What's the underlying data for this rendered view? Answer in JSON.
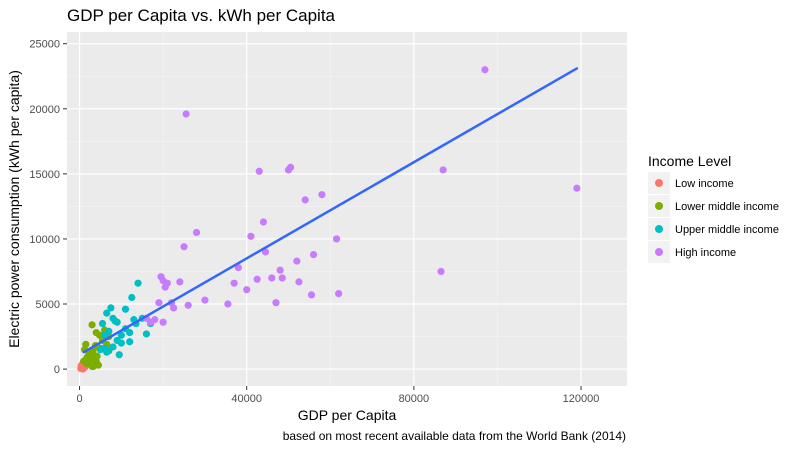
{
  "chart_data": {
    "type": "scatter",
    "title": "GDP per Capita vs. kWh per Capita",
    "xlabel": "GDP per Capita",
    "ylabel": "Electric power consumption (kWh per capita)",
    "caption": "based on most recent available data from the World Bank (2014)",
    "xlim": [
      -3000,
      131000
    ],
    "ylim": [
      -1300,
      25900
    ],
    "x_ticks": [
      0,
      40000,
      80000,
      120000
    ],
    "x_tick_labels": [
      "0",
      "40000",
      "80000",
      "120000"
    ],
    "y_ticks": [
      0,
      5000,
      10000,
      15000,
      20000,
      25000
    ],
    "y_tick_labels": [
      "0",
      "5000",
      "10000",
      "15000",
      "20000",
      "25000"
    ],
    "grid": true,
    "legend_position": "right",
    "legend_title": "Income Level",
    "series": [
      {
        "name": "Low income",
        "color": "#f8766d",
        "points": [
          [
            300,
            50
          ],
          [
            500,
            100
          ],
          [
            600,
            300
          ],
          [
            700,
            150
          ],
          [
            800,
            450
          ],
          [
            900,
            250
          ],
          [
            1000,
            200
          ],
          [
            1100,
            380
          ],
          [
            1200,
            500
          ],
          [
            1300,
            150
          ],
          [
            1500,
            320
          ],
          [
            1700,
            420
          ],
          [
            400,
            250
          ],
          [
            800,
            0
          ]
        ]
      },
      {
        "name": "Lower middle income",
        "color": "#7cae00",
        "points": [
          [
            1000,
            600
          ],
          [
            1200,
            1500
          ],
          [
            1500,
            1900
          ],
          [
            1800,
            900
          ],
          [
            2000,
            800
          ],
          [
            2200,
            1300
          ],
          [
            2500,
            500
          ],
          [
            2800,
            1100
          ],
          [
            3000,
            3400
          ],
          [
            3200,
            1400
          ],
          [
            3500,
            700
          ],
          [
            3800,
            1800
          ],
          [
            4000,
            2800
          ],
          [
            4200,
            1700
          ],
          [
            4500,
            300
          ],
          [
            4800,
            2600
          ],
          [
            5000,
            1600
          ],
          [
            5500,
            2200
          ],
          [
            6000,
            3000
          ],
          [
            6500,
            1900
          ],
          [
            7000,
            2500
          ],
          [
            3000,
            200
          ],
          [
            3500,
            1000
          ],
          [
            4000,
            600
          ],
          [
            2500,
            1200
          ],
          [
            1800,
            400
          ],
          [
            4200,
            1000
          ],
          [
            3300,
            200
          ]
        ]
      },
      {
        "name": "Upper middle income",
        "color": "#00bfc4",
        "points": [
          [
            5000,
            1500
          ],
          [
            5500,
            3500
          ],
          [
            6000,
            1600
          ],
          [
            6500,
            4300
          ],
          [
            7000,
            2900
          ],
          [
            7500,
            4700
          ],
          [
            8000,
            1700
          ],
          [
            8500,
            3700
          ],
          [
            9000,
            2200
          ],
          [
            9500,
            1100
          ],
          [
            10000,
            2600
          ],
          [
            11000,
            4600
          ],
          [
            12000,
            2100
          ],
          [
            12500,
            5500
          ],
          [
            13000,
            3800
          ],
          [
            14000,
            6600
          ],
          [
            15000,
            3900
          ],
          [
            16000,
            2700
          ],
          [
            17000,
            3500
          ],
          [
            8000,
            3900
          ],
          [
            9000,
            3600
          ],
          [
            7000,
            1400
          ],
          [
            10000,
            2000
          ],
          [
            6000,
            2600
          ],
          [
            11000,
            3100
          ],
          [
            12000,
            2800
          ],
          [
            13500,
            3500
          ],
          [
            6500,
            1300
          ]
        ]
      },
      {
        "name": "High income",
        "color": "#c77cff",
        "points": [
          [
            16000,
            3900
          ],
          [
            17000,
            3600
          ],
          [
            18000,
            3800
          ],
          [
            19000,
            5100
          ],
          [
            19500,
            7100
          ],
          [
            20000,
            6800
          ],
          [
            20500,
            6300
          ],
          [
            21000,
            6600
          ],
          [
            20000,
            3600
          ],
          [
            22000,
            5100
          ],
          [
            22500,
            4700
          ],
          [
            24000,
            6700
          ],
          [
            25000,
            9400
          ],
          [
            26000,
            4900
          ],
          [
            28000,
            10500
          ],
          [
            30000,
            5300
          ],
          [
            35500,
            5000
          ],
          [
            37000,
            6600
          ],
          [
            38000,
            7800
          ],
          [
            40000,
            6100
          ],
          [
            41000,
            10200
          ],
          [
            42500,
            6900
          ],
          [
            43000,
            15200
          ],
          [
            44000,
            11300
          ],
          [
            44500,
            9000
          ],
          [
            46000,
            7000
          ],
          [
            47000,
            5100
          ],
          [
            48000,
            7600
          ],
          [
            48500,
            7000
          ],
          [
            50000,
            15300
          ],
          [
            50500,
            15500
          ],
          [
            52000,
            8300
          ],
          [
            52500,
            6700
          ],
          [
            54000,
            13000
          ],
          [
            55500,
            5700
          ],
          [
            56000,
            8800
          ],
          [
            58000,
            13400
          ],
          [
            61500,
            10000
          ],
          [
            62000,
            5800
          ],
          [
            25500,
            19600
          ],
          [
            86500,
            7500
          ],
          [
            87000,
            15300
          ],
          [
            97000,
            23000
          ],
          [
            119000,
            13900
          ]
        ]
      }
    ],
    "trend_line": {
      "name": "linear fit",
      "color": "#3366ff",
      "x": [
        1000,
        119000
      ],
      "y": [
        1300,
        23100
      ]
    }
  }
}
